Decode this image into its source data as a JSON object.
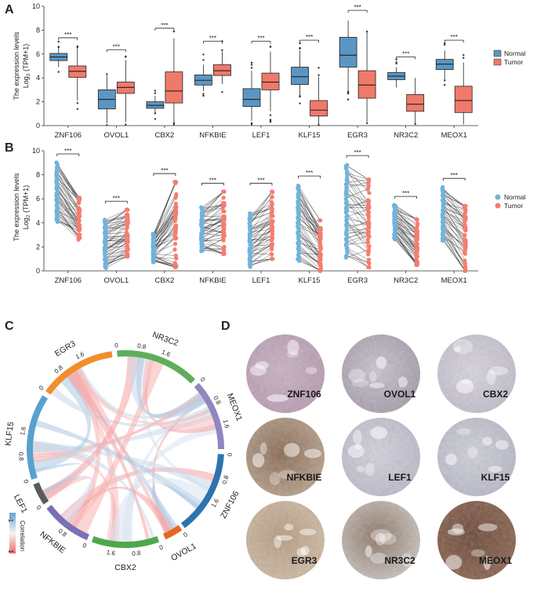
{
  "panels": {
    "A": "A",
    "B": "B",
    "C": "C",
    "D": "D"
  },
  "colors": {
    "normal": "#5b96c3",
    "tumor": "#f07a6a",
    "normal_pt": "#72b2dc",
    "tumor_pt": "#f57d70"
  },
  "chart_data": [
    {
      "type": "box",
      "panel": "A",
      "ylabel_line1": "The expression levels",
      "ylabel_line2": "Log",
      "ylabel_sub": "2",
      "ylabel_rest": " (TPM+1)",
      "ylim": [
        0,
        10
      ],
      "yticks": [
        "0",
        "2",
        "4",
        "6",
        "8",
        "10"
      ],
      "categories": [
        "ZNF106",
        "OVOL1",
        "CBX2",
        "NFKBIE",
        "LEF1",
        "KLF15",
        "EGR3",
        "NR3C2",
        "MEOX1"
      ],
      "significance": "***",
      "legend": [
        "Normal",
        "Tumor"
      ],
      "series": [
        {
          "name": "Normal",
          "box": [
            {
              "low": 4.9,
              "q1": 5.45,
              "median": 5.75,
              "q3": 6.05,
              "high": 6.5
            },
            {
              "low": 0.2,
              "q1": 1.4,
              "median": 2.2,
              "q3": 3.0,
              "high": 4.2
            },
            {
              "low": 1.1,
              "q1": 1.45,
              "median": 1.7,
              "q3": 2.0,
              "high": 2.5
            },
            {
              "low": 2.9,
              "q1": 3.4,
              "median": 3.8,
              "q3": 4.25,
              "high": 5.1
            },
            {
              "low": 0.4,
              "q1": 1.6,
              "median": 2.2,
              "q3": 3.1,
              "high": 4.6
            },
            {
              "low": 2.5,
              "q1": 3.45,
              "median": 4.1,
              "q3": 4.9,
              "high": 6.3
            },
            {
              "low": 2.9,
              "q1": 4.9,
              "median": 5.9,
              "q3": 7.4,
              "high": 8.8
            },
            {
              "low": 3.2,
              "q1": 3.85,
              "median": 4.15,
              "q3": 4.45,
              "high": 4.9
            },
            {
              "low": 3.9,
              "q1": 4.7,
              "median": 5.15,
              "q3": 5.55,
              "high": 6.3
            }
          ]
        },
        {
          "name": "Tumor",
          "box": [
            {
              "low": 2.1,
              "q1": 4.05,
              "median": 4.55,
              "q3": 5.0,
              "high": 6.5
            },
            {
              "low": 0.3,
              "q1": 2.7,
              "median": 3.2,
              "q3": 3.65,
              "high": 5.5
            },
            {
              "low": 0.3,
              "q1": 1.9,
              "median": 2.9,
              "q3": 4.5,
              "high": 7.3
            },
            {
              "low": 3.5,
              "q1": 4.2,
              "median": 4.6,
              "q3": 5.1,
              "high": 6.2
            },
            {
              "low": 1.2,
              "q1": 3.0,
              "median": 3.65,
              "q3": 4.4,
              "high": 6.2
            },
            {
              "low": 0.1,
              "q1": 0.8,
              "median": 1.3,
              "q3": 2.1,
              "high": 4.1
            },
            {
              "low": 0.3,
              "q1": 2.3,
              "median": 3.4,
              "q3": 4.6,
              "high": 7.8
            },
            {
              "low": 0.2,
              "q1": 1.2,
              "median": 1.8,
              "q3": 2.6,
              "high": 4.0
            },
            {
              "low": 0.1,
              "q1": 1.1,
              "median": 2.1,
              "q3": 3.3,
              "high": 5.3
            }
          ]
        }
      ]
    },
    {
      "type": "paired-scatter",
      "panel": "B",
      "ylabel_line1": "The expression levels",
      "ylabel_line2": "Log",
      "ylabel_sub": "2",
      "ylabel_rest": " (TPM+1)",
      "ylim": [
        0,
        10
      ],
      "yticks": [
        "0",
        "2",
        "4",
        "6",
        "8",
        "10"
      ],
      "categories": [
        "ZNF106",
        "OVOL1",
        "CBX2",
        "NFKBIE",
        "LEF1",
        "KLF15",
        "EGR3",
        "NR3C2",
        "MEOX1"
      ],
      "significance": "***",
      "legend": [
        "Normal",
        "Tumor"
      ],
      "normal_range": [
        [
          4.0,
          9.1
        ],
        [
          0.2,
          4.3
        ],
        [
          0.7,
          3.1
        ],
        [
          1.6,
          5.3
        ],
        [
          0.3,
          4.8
        ],
        [
          0.8,
          7.2
        ],
        [
          1.0,
          8.9
        ],
        [
          2.6,
          5.5
        ],
        [
          2.5,
          7.0
        ]
      ],
      "tumor_range": [
        [
          2.6,
          6.1
        ],
        [
          1.2,
          5.1
        ],
        [
          0.3,
          7.4
        ],
        [
          1.4,
          6.6
        ],
        [
          1.0,
          6.6
        ],
        [
          0.0,
          4.2
        ],
        [
          0.3,
          7.6
        ],
        [
          0.5,
          4.3
        ],
        [
          0.0,
          5.4
        ]
      ]
    },
    {
      "type": "chord",
      "panel": "C",
      "legend_title": "Correlation",
      "legend_top": "-1",
      "legend_bottom": "1",
      "sectors": [
        {
          "name": "NR3C2",
          "color": "#5fae5b",
          "ticks": [
            "0",
            "0.8",
            "1.6"
          ]
        },
        {
          "name": "MEOX1",
          "color": "#8f87c0",
          "ticks": [
            "0",
            "0.8",
            "1.6"
          ]
        },
        {
          "name": "ZNF106",
          "color": "#2e73ad",
          "ticks": [
            "0",
            "0.8",
            "1.6"
          ]
        },
        {
          "name": "OVOL1",
          "color": "#e26a22",
          "ticks": [
            "0"
          ]
        },
        {
          "name": "CBX2",
          "color": "#4ea84a",
          "ticks": [
            "0",
            "0.8",
            "1.6"
          ]
        },
        {
          "name": "NFKBIE",
          "color": "#7b6fb6",
          "ticks": [
            "0",
            "0.8"
          ]
        },
        {
          "name": "LEF1",
          "color": "#5a5a5a",
          "ticks": [
            "0"
          ]
        },
        {
          "name": "KLF15",
          "color": "#5aa0cf",
          "ticks": [
            "0",
            "0.8",
            "1.6"
          ]
        },
        {
          "name": "EGR3",
          "color": "#f28e2b",
          "ticks": [
            "0",
            "0.8",
            "1.6"
          ]
        }
      ]
    }
  ],
  "ihc": {
    "labels": [
      "ZNF106",
      "OVOL1",
      "CBX2",
      "NFKBIE",
      "LEF1",
      "KLF15",
      "EGR3",
      "NR3C2",
      "MEOX1"
    ]
  }
}
